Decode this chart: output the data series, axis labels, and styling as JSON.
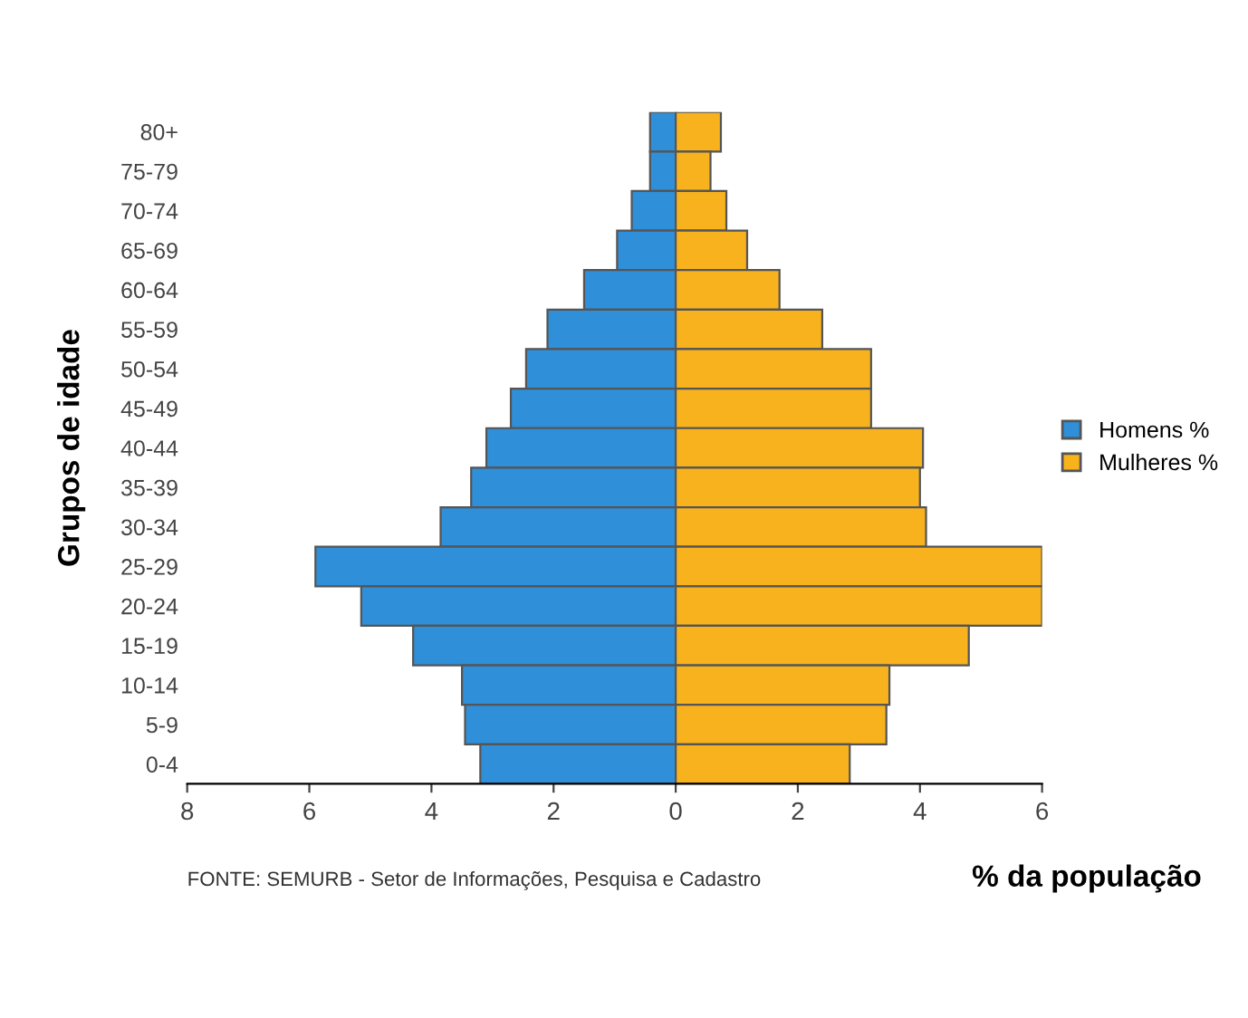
{
  "chart_data": {
    "type": "bar",
    "orientation": "horizontal",
    "stacked": true,
    "xlabel": "% da população",
    "ylabel": "Grupos de idade",
    "categories": [
      "80+",
      "75-79",
      "70-74",
      "65-69",
      "60-64",
      "55-59",
      "50-54",
      "45-49",
      "40-44",
      "35-39",
      "30-34",
      "25-29",
      "20-24",
      "15-19",
      "10-14",
      "5-9",
      "0-4"
    ],
    "series": [
      {
        "name": "Homens %",
        "color": "#2f8fd8",
        "values": [
          -0.42,
          -0.42,
          -0.72,
          -0.96,
          -1.5,
          -2.1,
          -2.45,
          -2.7,
          -3.1,
          -3.35,
          -3.85,
          -5.9,
          -5.15,
          -4.3,
          -3.5,
          -3.45,
          -3.2
        ]
      },
      {
        "name": "Mulheres %",
        "color": "#f7b21e",
        "values": [
          0.74,
          0.57,
          0.83,
          1.17,
          1.7,
          2.4,
          3.2,
          3.2,
          4.05,
          4.0,
          4.1,
          6.0,
          6.0,
          4.8,
          3.5,
          3.45,
          2.85
        ]
      }
    ],
    "xlim": [
      -8,
      6
    ],
    "xticks": [
      {
        "value": -8,
        "label": "8"
      },
      {
        "value": -6,
        "label": "6"
      },
      {
        "value": -4,
        "label": "4"
      },
      {
        "value": -2,
        "label": "2"
      },
      0,
      2,
      4,
      6
    ],
    "legend": "right",
    "annotations": [
      "FONTE: SEMURB - Setor de Informações, Pesquisa e Cadastro"
    ]
  }
}
